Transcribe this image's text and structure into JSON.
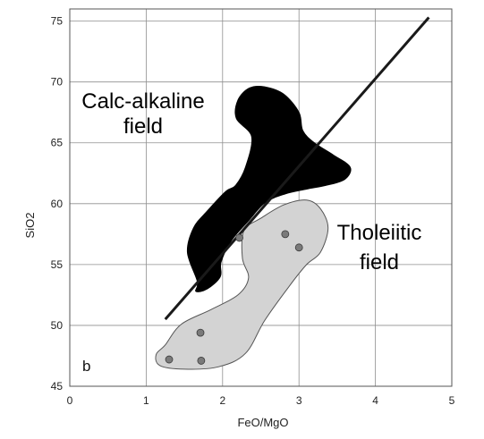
{
  "chart_data": {
    "type": "scatter",
    "xlabel": "FeO/MgO",
    "ylabel": "SiO2",
    "xlim": [
      0,
      5
    ],
    "ylim": [
      45,
      76
    ],
    "x_ticks": [
      "0",
      "1",
      "2",
      "3",
      "4",
      "5"
    ],
    "y_ticks": [
      "45",
      "50",
      "55",
      "60",
      "65",
      "70",
      "75"
    ],
    "grid": true,
    "panel_label": "b",
    "annotations": [
      {
        "lines": [
          "Calc-alkaline",
          "field"
        ]
      },
      {
        "lines": [
          "Tholeiitic",
          "field"
        ]
      }
    ],
    "divider_line": {
      "x": [
        1.25,
        4.7
      ],
      "y": [
        50.5,
        75.3
      ]
    },
    "points": [
      {
        "x": 1.3,
        "y": 47.2
      },
      {
        "x": 1.72,
        "y": 47.1
      },
      {
        "x": 1.71,
        "y": 49.4
      },
      {
        "x": 2.22,
        "y": 57.2
      },
      {
        "x": 2.82,
        "y": 57.5
      },
      {
        "x": 3.0,
        "y": 56.4
      }
    ],
    "calc_alkaline_region": [
      [
        1.67,
        53.6
      ],
      [
        1.54,
        56.0
      ],
      [
        1.62,
        58.0
      ],
      [
        1.8,
        59.4
      ],
      [
        2.04,
        61.0
      ],
      [
        2.17,
        61.5
      ],
      [
        2.3,
        63.0
      ],
      [
        2.38,
        65.5
      ],
      [
        2.18,
        67.0
      ],
      [
        2.2,
        68.5
      ],
      [
        2.35,
        69.5
      ],
      [
        2.55,
        69.6
      ],
      [
        2.8,
        69.0
      ],
      [
        3.0,
        67.5
      ],
      [
        3.05,
        66.0
      ],
      [
        3.2,
        65.0
      ],
      [
        3.45,
        64.0
      ],
      [
        3.67,
        63.0
      ],
      [
        3.6,
        62.0
      ],
      [
        3.35,
        61.5
      ],
      [
        3.1,
        61.2
      ],
      [
        2.82,
        60.8
      ],
      [
        2.56,
        60.1
      ],
      [
        2.34,
        58.6
      ],
      [
        2.12,
        57.0
      ],
      [
        1.98,
        55.2
      ],
      [
        1.97,
        54.0
      ],
      [
        1.8,
        53.0
      ],
      [
        1.65,
        52.8
      ]
    ],
    "tholeiitic_region": [
      [
        1.25,
        48.4
      ],
      [
        1.46,
        50.1
      ],
      [
        1.85,
        51.3
      ],
      [
        2.2,
        52.5
      ],
      [
        2.34,
        53.9
      ],
      [
        2.26,
        55.5
      ],
      [
        2.28,
        57.8
      ],
      [
        2.5,
        58.8
      ],
      [
        2.8,
        59.9
      ],
      [
        3.1,
        60.3
      ],
      [
        3.28,
        59.6
      ],
      [
        3.38,
        58.0
      ],
      [
        3.28,
        56.0
      ],
      [
        3.1,
        55.0
      ],
      [
        2.87,
        53.2
      ],
      [
        2.55,
        50.4
      ],
      [
        2.3,
        47.7
      ],
      [
        1.95,
        46.6
      ],
      [
        1.5,
        46.4
      ],
      [
        1.18,
        46.7
      ],
      [
        1.13,
        47.6
      ]
    ],
    "colors": {
      "calc_alkaline_fill": "#000000",
      "tholeiitic_fill": "#d3d3d3",
      "tholeiitic_stroke": "#555555",
      "point_fill": "#7a7a7a",
      "grid": "#8f8f8f",
      "divider_line": "#1a1a1a"
    }
  }
}
